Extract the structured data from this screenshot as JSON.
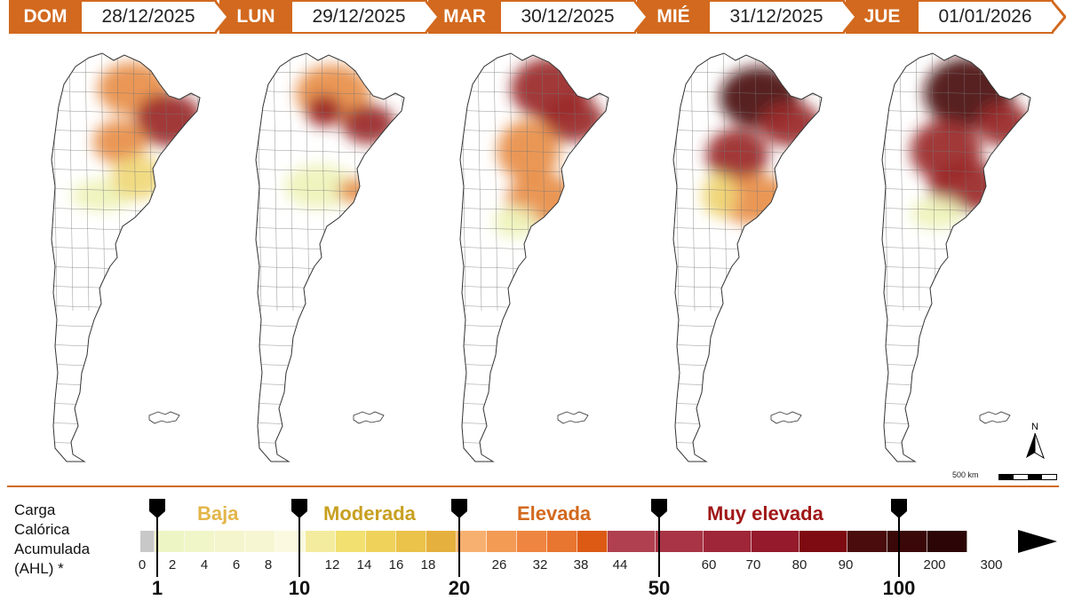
{
  "days": [
    {
      "abbr": "DOM",
      "date": "28/12/2025"
    },
    {
      "abbr": "LUN",
      "date": "29/12/2025"
    },
    {
      "abbr": "MAR",
      "date": "30/12/2025"
    },
    {
      "abbr": "MIÉ",
      "date": "31/12/2025"
    },
    {
      "abbr": "JUE",
      "date": "01/01/2026"
    }
  ],
  "scale_label": "500 km",
  "north_label": "N",
  "legend": {
    "title_lines": [
      "Carga",
      "Calórica",
      "Acumulada",
      "(AHL) *"
    ],
    "categories": [
      {
        "label": "Baja",
        "color": "#e3b54a"
      },
      {
        "label": "Moderada",
        "color": "#c8a020"
      },
      {
        "label": "Elevada",
        "color": "#d2691e"
      },
      {
        "label": "Muy elevada",
        "color": "#a01818"
      }
    ],
    "ticks": [
      "0",
      "2",
      "4",
      "6",
      "8",
      "12",
      "14",
      "16",
      "18",
      "26",
      "32",
      "38",
      "44",
      "60",
      "70",
      "80",
      "90",
      "200",
      "300"
    ],
    "thresholds": [
      "1",
      "10",
      "20",
      "50",
      "100"
    ],
    "colors": {
      "none": "#c8c8c8",
      "baja": [
        "#eef5c4",
        "#f1f6c8",
        "#f4f5cc",
        "#f7f6d2",
        "#fbfae0"
      ],
      "moderada": [
        "#f3ec9e",
        "#f2e070",
        "#efd25a",
        "#ebc24a",
        "#e6b03e"
      ],
      "elevada": [
        "#f8b070",
        "#f39a55",
        "#ee8540",
        "#e87530",
        "#dc5a14"
      ],
      "muy_elevada": [
        "#b04050",
        "#a83445",
        "#9e2638",
        "#941a2c",
        "#7e0a12"
      ],
      "extrema": [
        "#4a0c0c",
        "#3a0808",
        "#2c0606"
      ]
    }
  },
  "map_color_scale": {
    "baja": "#eef3b8",
    "moderada": "#f0d878",
    "elevada": "#e88e48",
    "muy_elevada": "#9a2828",
    "extrema": "#4a1010"
  }
}
